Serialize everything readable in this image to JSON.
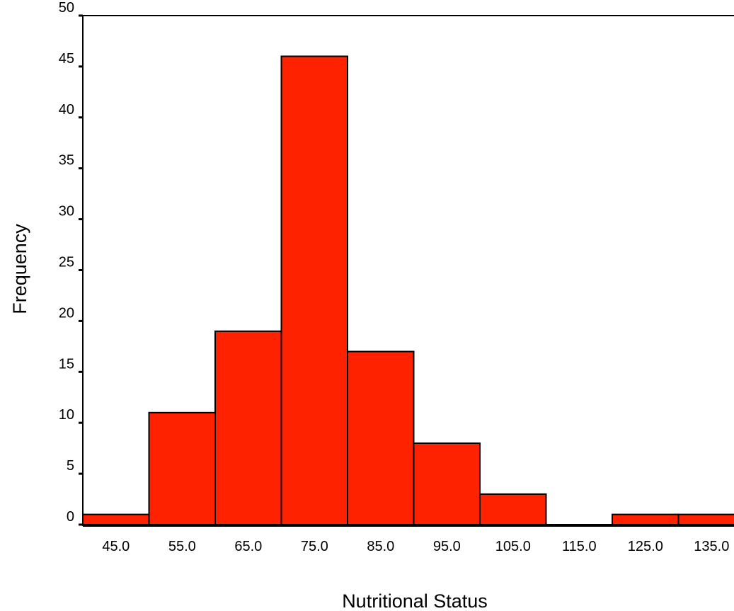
{
  "chart_data": {
    "type": "bar",
    "title": "",
    "xlabel": "Nutritional Status",
    "ylabel": "Frequency",
    "categories": [
      "45.0",
      "55.0",
      "65.0",
      "75.0",
      "85.0",
      "95.0",
      "105.0",
      "115.0",
      "125.0",
      "135.0"
    ],
    "values": [
      1,
      11,
      19,
      46,
      17,
      8,
      3,
      0,
      1,
      1
    ],
    "yticks": [
      0,
      5,
      10,
      15,
      20,
      25,
      30,
      35,
      40,
      45,
      50
    ],
    "ylim": [
      0,
      50
    ],
    "grid": false,
    "legend": "none",
    "colors": {
      "bar_fill": "#ff2200",
      "bar_stroke": "#000000",
      "axis": "#000000",
      "background": "#ffffff"
    }
  }
}
